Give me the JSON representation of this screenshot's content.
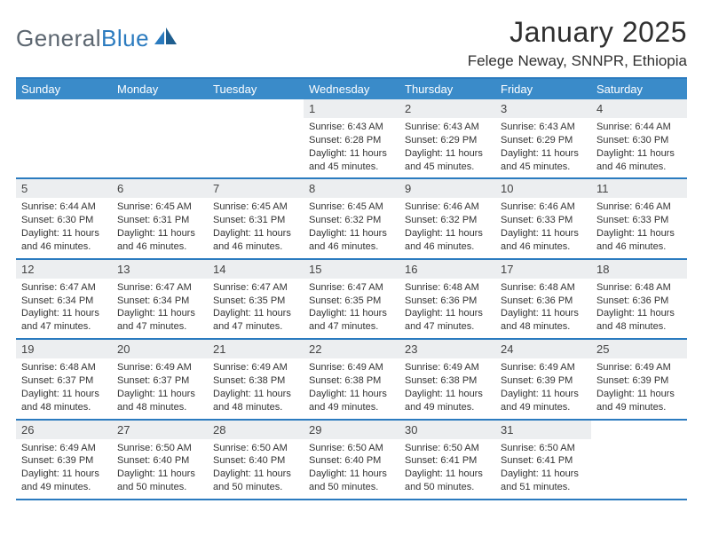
{
  "logo": {
    "general": "General",
    "blue": "Blue"
  },
  "title": "January 2025",
  "location": "Felege Neway, SNNPR, Ethiopia",
  "colors": {
    "header_bg": "#3a8bc9",
    "rule": "#2b7bbf",
    "daynum_bg": "#eceef0",
    "logo_gray": "#5c6670",
    "logo_blue": "#2b7bbf"
  },
  "weekdays": [
    "Sunday",
    "Monday",
    "Tuesday",
    "Wednesday",
    "Thursday",
    "Friday",
    "Saturday"
  ],
  "weeks": [
    [
      null,
      null,
      null,
      {
        "n": "1",
        "sr": "Sunrise: 6:43 AM",
        "ss": "Sunset: 6:28 PM",
        "dl": "Daylight: 11 hours and 45 minutes."
      },
      {
        "n": "2",
        "sr": "Sunrise: 6:43 AM",
        "ss": "Sunset: 6:29 PM",
        "dl": "Daylight: 11 hours and 45 minutes."
      },
      {
        "n": "3",
        "sr": "Sunrise: 6:43 AM",
        "ss": "Sunset: 6:29 PM",
        "dl": "Daylight: 11 hours and 45 minutes."
      },
      {
        "n": "4",
        "sr": "Sunrise: 6:44 AM",
        "ss": "Sunset: 6:30 PM",
        "dl": "Daylight: 11 hours and 46 minutes."
      }
    ],
    [
      {
        "n": "5",
        "sr": "Sunrise: 6:44 AM",
        "ss": "Sunset: 6:30 PM",
        "dl": "Daylight: 11 hours and 46 minutes."
      },
      {
        "n": "6",
        "sr": "Sunrise: 6:45 AM",
        "ss": "Sunset: 6:31 PM",
        "dl": "Daylight: 11 hours and 46 minutes."
      },
      {
        "n": "7",
        "sr": "Sunrise: 6:45 AM",
        "ss": "Sunset: 6:31 PM",
        "dl": "Daylight: 11 hours and 46 minutes."
      },
      {
        "n": "8",
        "sr": "Sunrise: 6:45 AM",
        "ss": "Sunset: 6:32 PM",
        "dl": "Daylight: 11 hours and 46 minutes."
      },
      {
        "n": "9",
        "sr": "Sunrise: 6:46 AM",
        "ss": "Sunset: 6:32 PM",
        "dl": "Daylight: 11 hours and 46 minutes."
      },
      {
        "n": "10",
        "sr": "Sunrise: 6:46 AM",
        "ss": "Sunset: 6:33 PM",
        "dl": "Daylight: 11 hours and 46 minutes."
      },
      {
        "n": "11",
        "sr": "Sunrise: 6:46 AM",
        "ss": "Sunset: 6:33 PM",
        "dl": "Daylight: 11 hours and 46 minutes."
      }
    ],
    [
      {
        "n": "12",
        "sr": "Sunrise: 6:47 AM",
        "ss": "Sunset: 6:34 PM",
        "dl": "Daylight: 11 hours and 47 minutes."
      },
      {
        "n": "13",
        "sr": "Sunrise: 6:47 AM",
        "ss": "Sunset: 6:34 PM",
        "dl": "Daylight: 11 hours and 47 minutes."
      },
      {
        "n": "14",
        "sr": "Sunrise: 6:47 AM",
        "ss": "Sunset: 6:35 PM",
        "dl": "Daylight: 11 hours and 47 minutes."
      },
      {
        "n": "15",
        "sr": "Sunrise: 6:47 AM",
        "ss": "Sunset: 6:35 PM",
        "dl": "Daylight: 11 hours and 47 minutes."
      },
      {
        "n": "16",
        "sr": "Sunrise: 6:48 AM",
        "ss": "Sunset: 6:36 PM",
        "dl": "Daylight: 11 hours and 47 minutes."
      },
      {
        "n": "17",
        "sr": "Sunrise: 6:48 AM",
        "ss": "Sunset: 6:36 PM",
        "dl": "Daylight: 11 hours and 48 minutes."
      },
      {
        "n": "18",
        "sr": "Sunrise: 6:48 AM",
        "ss": "Sunset: 6:36 PM",
        "dl": "Daylight: 11 hours and 48 minutes."
      }
    ],
    [
      {
        "n": "19",
        "sr": "Sunrise: 6:48 AM",
        "ss": "Sunset: 6:37 PM",
        "dl": "Daylight: 11 hours and 48 minutes."
      },
      {
        "n": "20",
        "sr": "Sunrise: 6:49 AM",
        "ss": "Sunset: 6:37 PM",
        "dl": "Daylight: 11 hours and 48 minutes."
      },
      {
        "n": "21",
        "sr": "Sunrise: 6:49 AM",
        "ss": "Sunset: 6:38 PM",
        "dl": "Daylight: 11 hours and 48 minutes."
      },
      {
        "n": "22",
        "sr": "Sunrise: 6:49 AM",
        "ss": "Sunset: 6:38 PM",
        "dl": "Daylight: 11 hours and 49 minutes."
      },
      {
        "n": "23",
        "sr": "Sunrise: 6:49 AM",
        "ss": "Sunset: 6:38 PM",
        "dl": "Daylight: 11 hours and 49 minutes."
      },
      {
        "n": "24",
        "sr": "Sunrise: 6:49 AM",
        "ss": "Sunset: 6:39 PM",
        "dl": "Daylight: 11 hours and 49 minutes."
      },
      {
        "n": "25",
        "sr": "Sunrise: 6:49 AM",
        "ss": "Sunset: 6:39 PM",
        "dl": "Daylight: 11 hours and 49 minutes."
      }
    ],
    [
      {
        "n": "26",
        "sr": "Sunrise: 6:49 AM",
        "ss": "Sunset: 6:39 PM",
        "dl": "Daylight: 11 hours and 49 minutes."
      },
      {
        "n": "27",
        "sr": "Sunrise: 6:50 AM",
        "ss": "Sunset: 6:40 PM",
        "dl": "Daylight: 11 hours and 50 minutes."
      },
      {
        "n": "28",
        "sr": "Sunrise: 6:50 AM",
        "ss": "Sunset: 6:40 PM",
        "dl": "Daylight: 11 hours and 50 minutes."
      },
      {
        "n": "29",
        "sr": "Sunrise: 6:50 AM",
        "ss": "Sunset: 6:40 PM",
        "dl": "Daylight: 11 hours and 50 minutes."
      },
      {
        "n": "30",
        "sr": "Sunrise: 6:50 AM",
        "ss": "Sunset: 6:41 PM",
        "dl": "Daylight: 11 hours and 50 minutes."
      },
      {
        "n": "31",
        "sr": "Sunrise: 6:50 AM",
        "ss": "Sunset: 6:41 PM",
        "dl": "Daylight: 11 hours and 51 minutes."
      },
      null
    ]
  ]
}
